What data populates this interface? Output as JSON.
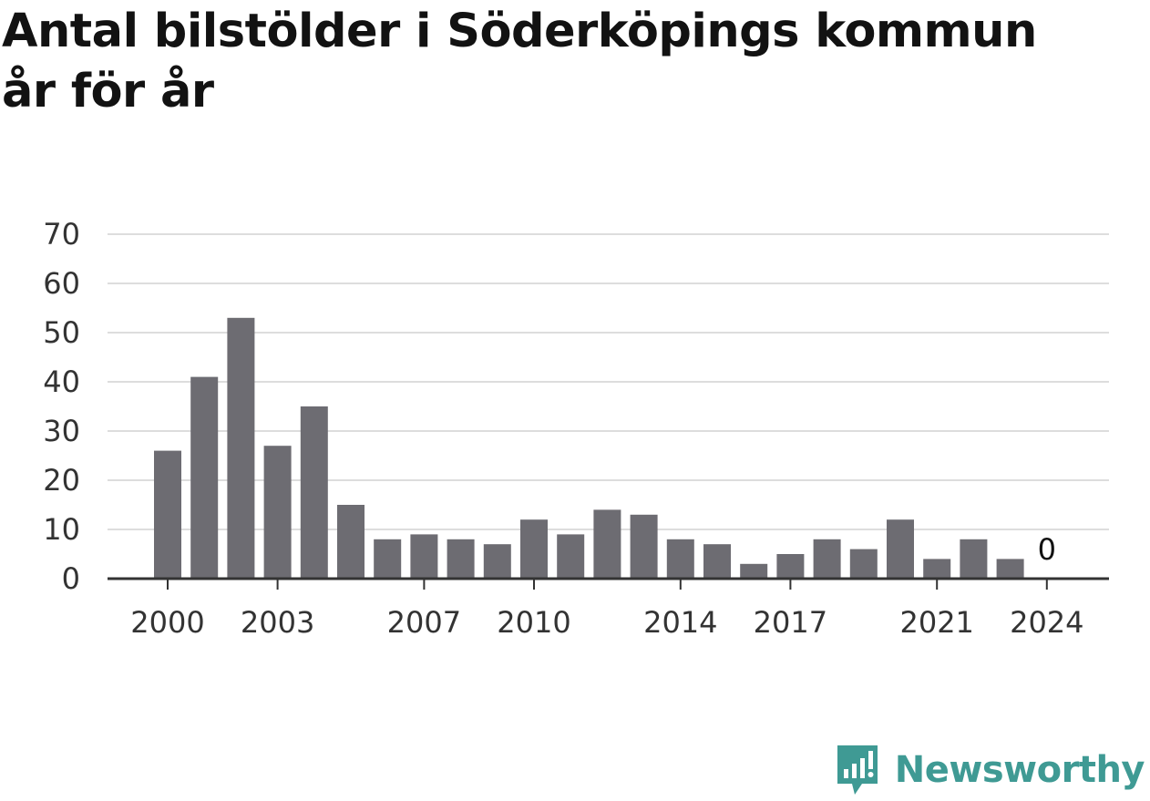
{
  "title": {
    "line1": "Antal bilstölder i Söderköpings kommun",
    "line2": "år för år"
  },
  "brand": {
    "name": "Newsworthy",
    "icon": "newsworthy-logo-icon",
    "color": "#3f9a94"
  },
  "colors": {
    "bar": "#6d6c72",
    "grid": "#dddddd",
    "axis": "#333333"
  },
  "chart_data": {
    "type": "bar",
    "categories": [
      "2000",
      "2001",
      "2002",
      "2003",
      "2004",
      "2005",
      "2006",
      "2007",
      "2008",
      "2009",
      "2010",
      "2011",
      "2012",
      "2013",
      "2014",
      "2015",
      "2016",
      "2017",
      "2018",
      "2019",
      "2020",
      "2021",
      "2022",
      "2023",
      "2024"
    ],
    "values": [
      26,
      41,
      53,
      27,
      35,
      15,
      8,
      9,
      8,
      7,
      12,
      9,
      14,
      13,
      8,
      7,
      3,
      5,
      8,
      6,
      12,
      4,
      8,
      4,
      0
    ],
    "x_tick_labels": [
      "2000",
      "2003",
      "2007",
      "2010",
      "2014",
      "2017",
      "2021",
      "2024"
    ],
    "y_ticks": [
      0,
      10,
      20,
      30,
      40,
      50,
      60,
      70
    ],
    "ylim": [
      0,
      70
    ],
    "grid": true,
    "annotations": [
      {
        "category": "2024",
        "text": "0"
      }
    ],
    "xlabel": "",
    "ylabel": ""
  }
}
